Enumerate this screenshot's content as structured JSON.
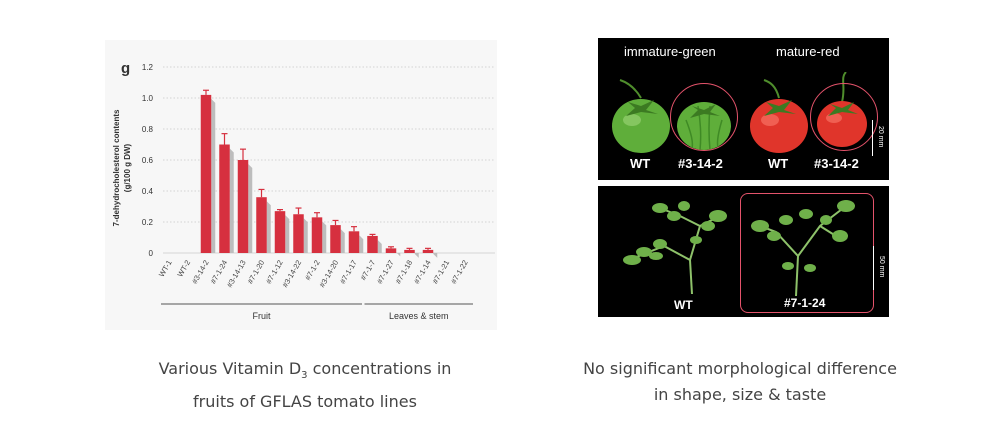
{
  "chart_data": {
    "type": "bar",
    "panel_letter": "g",
    "ylabel_line1": "7-dehydrocholesterol contents",
    "ylabel_line2": "(g/100 g DW)",
    "ylim": [
      0,
      1.2
    ],
    "yticks": [
      "0",
      "0.2",
      "0.4",
      "0.6",
      "0.8",
      "1.0",
      "1.2"
    ],
    "grid": true,
    "categories": [
      "WT-1",
      "WT-2",
      "#3-14-2",
      "#7-1-24",
      "#3-14-13",
      "#7-1-20",
      "#7-1-12",
      "#3-14-22",
      "#7-1-2",
      "#3-14-20",
      "#7-1-17",
      "#7-1-7",
      "#7-1-27",
      "#7-1-18",
      "#7-1-14",
      "#7-1-21",
      "#7-1-22"
    ],
    "values": [
      0,
      0,
      1.02,
      0.7,
      0.6,
      0.36,
      0.27,
      0.25,
      0.23,
      0.18,
      0.14,
      0.11,
      0.03,
      0.02,
      0.02,
      0,
      0
    ],
    "errors": [
      0,
      0,
      0.03,
      0.07,
      0.07,
      0.05,
      0.01,
      0.04,
      0.03,
      0.03,
      0.03,
      0.01,
      0.01,
      0.01,
      0.01,
      0,
      0
    ],
    "groups": [
      {
        "label": "Fruit",
        "from": 0,
        "to": 10
      },
      {
        "label": "Leaves & stem",
        "from": 11,
        "to": 16
      }
    ],
    "bar_color": "#d6303f",
    "shadow_color": "#bdbdbd"
  },
  "captions": {
    "left_line1": "Various Vitamin D",
    "left_sub": "3",
    "left_line1_end": " concentrations in",
    "left_line2": "fruits of GFLAS tomato lines",
    "right_line1": "No significant morphological difference",
    "right_line2": "in shape, size & taste"
  },
  "photos": {
    "top": {
      "stage_left": "immature-green",
      "stage_right": "mature-red",
      "labels": [
        "WT",
        "#3-14-2",
        "WT",
        "#3-14-2"
      ],
      "scale": "20 mm"
    },
    "bottom": {
      "labels": [
        "WT",
        "#7-1-24"
      ],
      "scale": "50 mm"
    },
    "colors": {
      "highlight": "#e4536b",
      "green_fruit": "#5fae3a",
      "red_fruit": "#e0352b",
      "leaf": "#6fb04a"
    }
  }
}
